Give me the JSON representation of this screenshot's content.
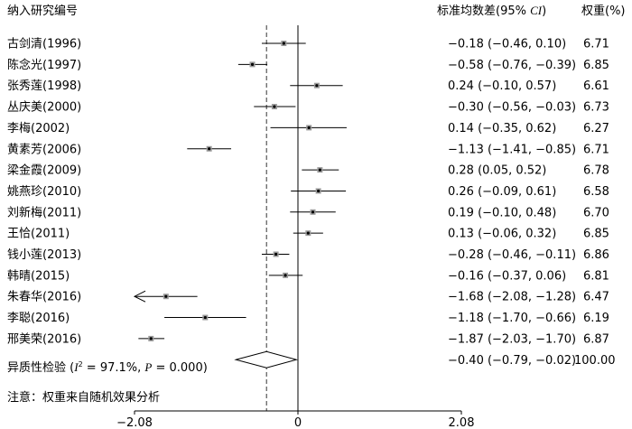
{
  "chart_data": {
    "type": "forest",
    "headers": {
      "study": "纳入研究编号",
      "effect": "标准均数差(95% CI)",
      "weight": "权重(%)"
    },
    "studies": [
      {
        "label": "古剑清(1996)",
        "smd": -0.18,
        "lo": -0.46,
        "hi": 0.1,
        "text": "−0.18 (−0.46, 0.10)",
        "weight": "6.71"
      },
      {
        "label": "陈念光(1997)",
        "smd": -0.58,
        "lo": -0.76,
        "hi": -0.39,
        "text": "−0.58 (−0.76, −0.39)",
        "weight": "6.85"
      },
      {
        "label": "张秀莲(1998)",
        "smd": 0.24,
        "lo": -0.1,
        "hi": 0.57,
        "text": "0.24 (−0.10, 0.57)",
        "weight": "6.61"
      },
      {
        "label": "丛庆美(2000)",
        "smd": -0.3,
        "lo": -0.56,
        "hi": -0.03,
        "text": "−0.30 (−0.56, −0.03)",
        "weight": "6.73"
      },
      {
        "label": "李梅(2002)",
        "smd": 0.14,
        "lo": -0.35,
        "hi": 0.62,
        "text": "0.14 (−0.35, 0.62)",
        "weight": "6.27"
      },
      {
        "label": "黄素芳(2006)",
        "smd": -1.13,
        "lo": -1.41,
        "hi": -0.85,
        "text": "−1.13 (−1.41, −0.85)",
        "weight": "6.71"
      },
      {
        "label": "梁金霞(2009)",
        "smd": 0.28,
        "lo": 0.05,
        "hi": 0.52,
        "text": "0.28 (0.05, 0.52)",
        "weight": "6.78"
      },
      {
        "label": "姚燕珍(2010)",
        "smd": 0.26,
        "lo": -0.09,
        "hi": 0.61,
        "text": "0.26 (−0.09, 0.61)",
        "weight": "6.58"
      },
      {
        "label": "刘新梅(2011)",
        "smd": 0.19,
        "lo": -0.1,
        "hi": 0.48,
        "text": "0.19 (−0.10, 0.48)",
        "weight": "6.70"
      },
      {
        "label": "王恰(2011)",
        "smd": 0.13,
        "lo": -0.06,
        "hi": 0.32,
        "text": "0.13 (−0.06, 0.32)",
        "weight": "6.85"
      },
      {
        "label": "钱小莲(2013)",
        "smd": -0.28,
        "lo": -0.46,
        "hi": -0.11,
        "text": "−0.28 (−0.46, −0.11)",
        "weight": "6.86"
      },
      {
        "label": "韩晴(2015)",
        "smd": -0.16,
        "lo": -0.37,
        "hi": 0.06,
        "text": "−0.16 (−0.37, 0.06)",
        "weight": "6.81"
      },
      {
        "label": "朱春华(2016)",
        "smd": -1.68,
        "lo": -2.08,
        "hi": -1.28,
        "text": "−1.68 (−2.08, −1.28)",
        "weight": "6.47",
        "arrow_left": true
      },
      {
        "label": "李聪(2016)",
        "smd": -1.18,
        "lo": -1.7,
        "hi": -0.66,
        "text": "−1.18 (−1.70, −0.66)",
        "weight": "6.19"
      },
      {
        "label": "邢美荣(2016)",
        "smd": -1.87,
        "lo": -2.03,
        "hi": -1.7,
        "text": "−1.87 (−2.03, −1.70)",
        "weight": "6.87"
      }
    ],
    "overall": {
      "label_prefix": "异质性检验 (",
      "i2_symbol": "I",
      "i2_sup": "2",
      "i2_rest": " = 97.1%, ",
      "p_symbol": "P",
      "p_rest": " = 0.000)",
      "smd": -0.4,
      "lo": -0.79,
      "hi": -0.02,
      "text": "−0.40 (−0.79, −0.02)",
      "weight": "100.00"
    },
    "note": "注意：权重来自随机效果分析",
    "x_axis": {
      "range": [
        -2.08,
        2.08
      ],
      "ticks": [
        -2.08,
        0,
        2.08
      ],
      "tick_labels": [
        "−2.08",
        "0",
        "2.08"
      ]
    },
    "reference_line": 0,
    "dashed_line": -0.4
  }
}
